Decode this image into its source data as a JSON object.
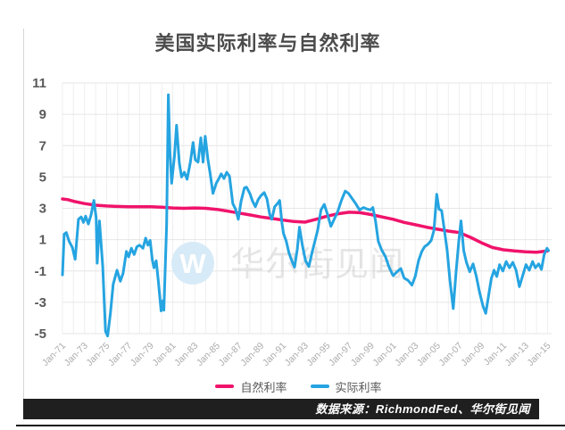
{
  "title": "美国实际利率与自然利率",
  "watermark": {
    "w": "W",
    "text": "华尔街见闻"
  },
  "legend": [
    {
      "label": "自然利率",
      "color": "#f0136b"
    },
    {
      "label": "实际利率",
      "color": "#25a4e1"
    }
  ],
  "footer": {
    "source_label": "数据来源：RichmondFed、华尔街见闻"
  },
  "colors": {
    "natural_rate": "#f0136b",
    "real_rate": "#25a4e1",
    "grid_h": "#e6e6e6",
    "grid_v": "#efefef",
    "y_tick_text": "#595959",
    "x_tick_text": "#ababab",
    "footer_bg": "#1f1f1f",
    "watermark_circle": "#d7eaf7"
  },
  "chart_data": {
    "type": "line",
    "title": "美国实际利率与自然利率",
    "xlabel": "",
    "ylabel": "",
    "grid": true,
    "legend_position": "bottom",
    "y_axis": {
      "min": -5,
      "max": 11,
      "ticks": [
        11,
        9,
        7,
        5,
        3,
        1,
        -1,
        -3,
        -5
      ]
    },
    "x_axis": {
      "start_year": 1971,
      "end_year": 2015,
      "tick_years": [
        1971,
        1973,
        1975,
        1977,
        1979,
        1981,
        1983,
        1985,
        1987,
        1989,
        1991,
        1993,
        1995,
        1997,
        1999,
        2001,
        2003,
        2005,
        2007,
        2009,
        2011,
        2013,
        2015
      ],
      "tick_labels": [
        "Jan-71",
        "Jan-73",
        "Jan-75",
        "Jan-77",
        "Jan-79",
        "Jan-81",
        "Jan-83",
        "Jan-85",
        "Jan-87",
        "Jan-89",
        "Jan-91",
        "Jan-93",
        "Jan-95",
        "Jan-97",
        "Jan-99",
        "Jan-01",
        "Jan-03",
        "Jan-05",
        "Jan-07",
        "Jan-09",
        "Jan-11",
        "Jan-13",
        "Jan-15"
      ]
    },
    "series": [
      {
        "name": "自然利率",
        "color": "#f0136b",
        "width": 3.5,
        "points": [
          [
            1971,
            3.6
          ],
          [
            1971.5,
            3.55
          ],
          [
            1972,
            3.45
          ],
          [
            1973,
            3.3
          ],
          [
            1974,
            3.2
          ],
          [
            1975,
            3.15
          ],
          [
            1976,
            3.12
          ],
          [
            1977,
            3.1
          ],
          [
            1978,
            3.1
          ],
          [
            1979,
            3.1
          ],
          [
            1980,
            3.07
          ],
          [
            1981,
            3.02
          ],
          [
            1982,
            3.0
          ],
          [
            1983,
            3.02
          ],
          [
            1984,
            3.0
          ],
          [
            1985,
            2.93
          ],
          [
            1986,
            2.82
          ],
          [
            1987,
            2.7
          ],
          [
            1988,
            2.58
          ],
          [
            1989,
            2.45
          ],
          [
            1990,
            2.35
          ],
          [
            1991,
            2.25
          ],
          [
            1992,
            2.16
          ],
          [
            1993,
            2.12
          ],
          [
            1994,
            2.3
          ],
          [
            1995,
            2.5
          ],
          [
            1996,
            2.65
          ],
          [
            1997,
            2.75
          ],
          [
            1998,
            2.72
          ],
          [
            1999,
            2.6
          ],
          [
            2000,
            2.45
          ],
          [
            2001,
            2.3
          ],
          [
            2002,
            2.1
          ],
          [
            2003,
            1.95
          ],
          [
            2004,
            1.8
          ],
          [
            2005,
            1.67
          ],
          [
            2006,
            1.55
          ],
          [
            2007,
            1.45
          ],
          [
            2008,
            1.15
          ],
          [
            2009,
            0.8
          ],
          [
            2010,
            0.5
          ],
          [
            2011,
            0.35
          ],
          [
            2012,
            0.28
          ],
          [
            2013,
            0.22
          ],
          [
            2014,
            0.2
          ],
          [
            2015,
            0.28
          ]
        ]
      },
      {
        "name": "实际利率",
        "color": "#25a4e1",
        "width": 3,
        "points": [
          [
            1971.0,
            -1.25
          ],
          [
            1971.15,
            1.35
          ],
          [
            1971.35,
            1.45
          ],
          [
            1971.6,
            0.9
          ],
          [
            1971.9,
            0.5
          ],
          [
            1972.15,
            -0.25
          ],
          [
            1972.45,
            2.3
          ],
          [
            1972.7,
            2.45
          ],
          [
            1972.9,
            2.1
          ],
          [
            1973.1,
            2.5
          ],
          [
            1973.35,
            2.0
          ],
          [
            1973.6,
            2.6
          ],
          [
            1973.85,
            3.5
          ],
          [
            1974.05,
            2.4
          ],
          [
            1974.15,
            -0.5
          ],
          [
            1974.35,
            2.2
          ],
          [
            1974.65,
            -0.7
          ],
          [
            1974.9,
            -4.85
          ],
          [
            1975.1,
            -5.15
          ],
          [
            1975.35,
            -3.7
          ],
          [
            1975.6,
            -1.85
          ],
          [
            1975.95,
            -0.95
          ],
          [
            1976.25,
            -1.65
          ],
          [
            1976.5,
            -1.15
          ],
          [
            1976.8,
            0.25
          ],
          [
            1977.0,
            -0.1
          ],
          [
            1977.25,
            0.45
          ],
          [
            1977.5,
            0.05
          ],
          [
            1977.75,
            0.55
          ],
          [
            1978.0,
            0.65
          ],
          [
            1978.3,
            0.45
          ],
          [
            1978.55,
            1.1
          ],
          [
            1978.75,
            0.65
          ],
          [
            1978.95,
            0.95
          ],
          [
            1979.15,
            -0.3
          ],
          [
            1979.3,
            -0.8
          ],
          [
            1979.5,
            -0.35
          ],
          [
            1979.7,
            -1.65
          ],
          [
            1979.95,
            -3.55
          ],
          [
            1980.1,
            -2.9
          ],
          [
            1980.2,
            -3.5
          ],
          [
            1980.45,
            2.0
          ],
          [
            1980.6,
            10.25
          ],
          [
            1980.75,
            6.6
          ],
          [
            1980.9,
            4.6
          ],
          [
            1981.15,
            6.3
          ],
          [
            1981.35,
            8.3
          ],
          [
            1981.6,
            5.9
          ],
          [
            1981.8,
            5.0
          ],
          [
            1982.05,
            5.3
          ],
          [
            1982.3,
            4.85
          ],
          [
            1982.6,
            5.95
          ],
          [
            1982.85,
            7.2
          ],
          [
            1983.05,
            6.1
          ],
          [
            1983.3,
            5.95
          ],
          [
            1983.55,
            7.5
          ],
          [
            1983.75,
            5.95
          ],
          [
            1983.95,
            7.6
          ],
          [
            1984.2,
            6.1
          ],
          [
            1984.4,
            5.2
          ],
          [
            1984.65,
            3.95
          ],
          [
            1984.95,
            4.6
          ],
          [
            1985.15,
            4.85
          ],
          [
            1985.4,
            5.2
          ],
          [
            1985.65,
            4.9
          ],
          [
            1985.9,
            5.3
          ],
          [
            1986.15,
            5.05
          ],
          [
            1986.45,
            3.3
          ],
          [
            1986.7,
            2.95
          ],
          [
            1986.95,
            2.3
          ],
          [
            1987.2,
            3.45
          ],
          [
            1987.5,
            4.3
          ],
          [
            1987.7,
            4.35
          ],
          [
            1988.0,
            3.95
          ],
          [
            1988.25,
            3.45
          ],
          [
            1988.5,
            3.1
          ],
          [
            1988.75,
            3.55
          ],
          [
            1989.0,
            3.8
          ],
          [
            1989.3,
            4.0
          ],
          [
            1989.55,
            3.6
          ],
          [
            1989.8,
            2.6
          ],
          [
            1990.0,
            2.3
          ],
          [
            1990.25,
            3.1
          ],
          [
            1990.5,
            3.3
          ],
          [
            1990.7,
            3.5
          ],
          [
            1990.9,
            2.1
          ],
          [
            1991.05,
            1.4
          ],
          [
            1991.3,
            0.9
          ],
          [
            1991.55,
            0.15
          ],
          [
            1991.8,
            -0.35
          ],
          [
            1992.05,
            -0.75
          ],
          [
            1992.3,
            0.4
          ],
          [
            1992.5,
            1.8
          ],
          [
            1992.75,
            0.7
          ],
          [
            1993.05,
            -0.35
          ],
          [
            1993.35,
            -0.72
          ],
          [
            1993.65,
            0.2
          ],
          [
            1993.9,
            0.9
          ],
          [
            1994.15,
            1.6
          ],
          [
            1994.45,
            2.9
          ],
          [
            1994.75,
            3.25
          ],
          [
            1995.05,
            2.6
          ],
          [
            1995.35,
            1.85
          ],
          [
            1995.65,
            2.3
          ],
          [
            1995.95,
            2.75
          ],
          [
            1996.3,
            3.5
          ],
          [
            1996.65,
            4.1
          ],
          [
            1996.95,
            3.95
          ],
          [
            1997.3,
            3.6
          ],
          [
            1997.6,
            3.3
          ],
          [
            1997.95,
            2.9
          ],
          [
            1998.3,
            3.05
          ],
          [
            1998.65,
            2.95
          ],
          [
            1998.95,
            2.9
          ],
          [
            1999.15,
            3.05
          ],
          [
            1999.4,
            2.2
          ],
          [
            1999.65,
            0.9
          ],
          [
            1999.95,
            0.35
          ],
          [
            2000.3,
            -0.1
          ],
          [
            2000.65,
            -0.8
          ],
          [
            2001.0,
            -1.3
          ],
          [
            2001.35,
            -1.05
          ],
          [
            2001.7,
            -0.85
          ],
          [
            2002.0,
            -1.45
          ],
          [
            2002.35,
            -1.6
          ],
          [
            2002.7,
            -1.9
          ],
          [
            2003.0,
            -1.35
          ],
          [
            2003.3,
            -0.35
          ],
          [
            2003.6,
            0.25
          ],
          [
            2003.85,
            0.55
          ],
          [
            2004.15,
            0.7
          ],
          [
            2004.45,
            0.95
          ],
          [
            2004.7,
            1.6
          ],
          [
            2004.95,
            3.9
          ],
          [
            2005.15,
            2.95
          ],
          [
            2005.4,
            2.85
          ],
          [
            2005.65,
            1.6
          ],
          [
            2005.9,
            0.3
          ],
          [
            2006.15,
            -1.6
          ],
          [
            2006.45,
            -3.4
          ],
          [
            2006.7,
            -1.1
          ],
          [
            2006.95,
            0.9
          ],
          [
            2007.15,
            2.2
          ],
          [
            2007.4,
            0.3
          ],
          [
            2007.65,
            -0.45
          ],
          [
            2007.95,
            -1.05
          ],
          [
            2008.25,
            -0.55
          ],
          [
            2008.55,
            -1.35
          ],
          [
            2008.85,
            -2.4
          ],
          [
            2009.15,
            -3.25
          ],
          [
            2009.4,
            -3.7
          ],
          [
            2009.65,
            -2.6
          ],
          [
            2009.9,
            -1.5
          ],
          [
            2010.15,
            -0.95
          ],
          [
            2010.4,
            -1.35
          ],
          [
            2010.65,
            -0.6
          ],
          [
            2010.95,
            -1.0
          ],
          [
            2011.25,
            -0.4
          ],
          [
            2011.55,
            -0.8
          ],
          [
            2011.85,
            -0.45
          ],
          [
            2012.15,
            -0.95
          ],
          [
            2012.45,
            -2.0
          ],
          [
            2012.75,
            -1.3
          ],
          [
            2013.05,
            -0.6
          ],
          [
            2013.35,
            -0.95
          ],
          [
            2013.65,
            -0.4
          ],
          [
            2013.9,
            -0.8
          ],
          [
            2014.2,
            -0.55
          ],
          [
            2014.45,
            -0.9
          ],
          [
            2014.7,
            0.05
          ],
          [
            2014.95,
            0.45
          ],
          [
            2015.1,
            0.3
          ]
        ]
      }
    ]
  }
}
